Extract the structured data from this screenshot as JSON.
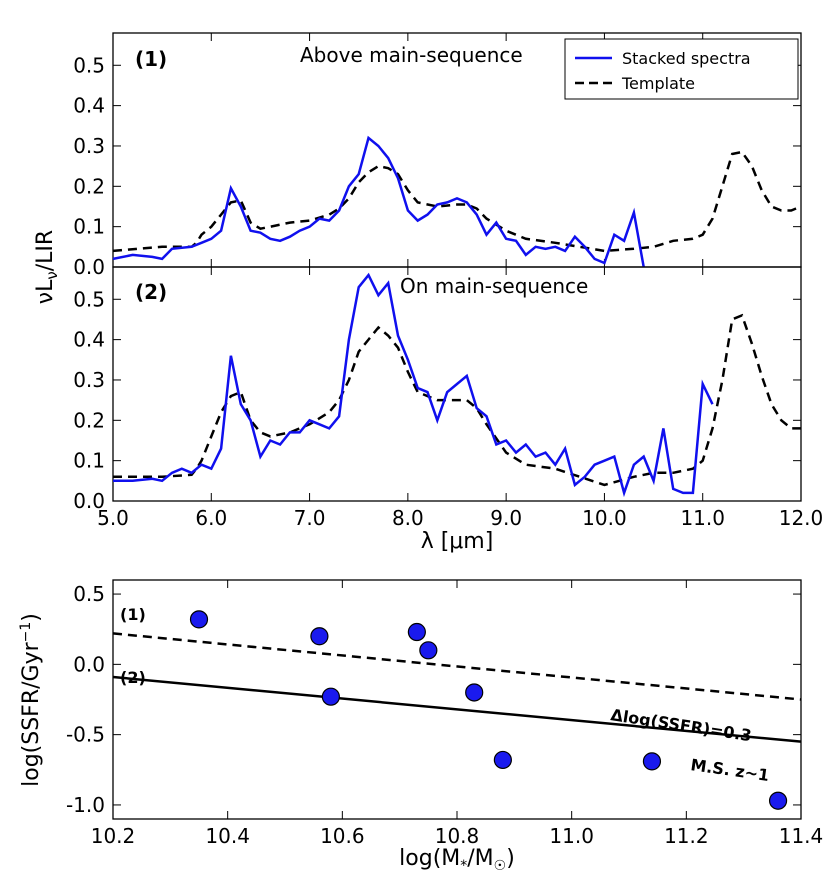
{
  "colors": {
    "spectra": "#1010ee",
    "template": "#000000",
    "point_fill": "#1a1aee",
    "point_edge": "#000000"
  },
  "chart_data": [
    {
      "type": "line",
      "panel": "(1)",
      "title": "Above main-sequence",
      "xlim": [
        5.0,
        12.0
      ],
      "ylim": [
        0.0,
        0.58
      ],
      "yticks": [
        "0.0",
        "0.1",
        "0.2",
        "0.3",
        "0.4",
        "0.5"
      ],
      "ylabel": "νL_ν/LIR",
      "legend": {
        "placement": "top-right",
        "entries": [
          "Stacked spectra",
          "Template"
        ]
      },
      "series": [
        {
          "name": "Stacked spectra",
          "style": "solid",
          "x": [
            5.0,
            5.2,
            5.4,
            5.5,
            5.6,
            5.8,
            5.9,
            6.0,
            6.1,
            6.2,
            6.3,
            6.4,
            6.5,
            6.6,
            6.7,
            6.8,
            6.9,
            7.0,
            7.1,
            7.2,
            7.3,
            7.4,
            7.5,
            7.6,
            7.7,
            7.8,
            7.9,
            8.0,
            8.1,
            8.2,
            8.3,
            8.4,
            8.5,
            8.6,
            8.7,
            8.8,
            8.9,
            9.0,
            9.1,
            9.2,
            9.3,
            9.4,
            9.5,
            9.6,
            9.7,
            9.8,
            9.9,
            10.0,
            10.1,
            10.2,
            10.3,
            10.4
          ],
          "y": [
            0.02,
            0.03,
            0.025,
            0.02,
            0.045,
            0.05,
            0.06,
            0.07,
            0.09,
            0.195,
            0.15,
            0.09,
            0.085,
            0.07,
            0.065,
            0.075,
            0.09,
            0.1,
            0.12,
            0.115,
            0.14,
            0.2,
            0.23,
            0.32,
            0.3,
            0.27,
            0.22,
            0.14,
            0.115,
            0.13,
            0.155,
            0.16,
            0.17,
            0.16,
            0.13,
            0.08,
            0.11,
            0.07,
            0.065,
            0.03,
            0.05,
            0.045,
            0.05,
            0.04,
            0.075,
            0.05,
            0.02,
            0.01,
            0.08,
            0.065,
            0.135,
            0.0
          ]
        },
        {
          "name": "Template",
          "style": "dashed",
          "x": [
            5.0,
            5.5,
            5.8,
            5.85,
            5.9,
            6.0,
            6.1,
            6.2,
            6.3,
            6.4,
            6.5,
            6.6,
            6.8,
            7.0,
            7.2,
            7.3,
            7.4,
            7.5,
            7.6,
            7.7,
            7.8,
            7.9,
            8.0,
            8.1,
            8.3,
            8.5,
            8.6,
            8.7,
            8.8,
            9.0,
            9.2,
            9.5,
            10.0,
            10.3,
            10.5,
            10.7,
            10.9,
            11.0,
            11.1,
            11.2,
            11.3,
            11.4,
            11.5,
            11.6,
            11.7,
            11.8,
            11.9,
            12.0
          ],
          "y": [
            0.04,
            0.05,
            0.05,
            0.06,
            0.08,
            0.1,
            0.13,
            0.16,
            0.165,
            0.11,
            0.095,
            0.1,
            0.11,
            0.115,
            0.13,
            0.145,
            0.17,
            0.21,
            0.235,
            0.25,
            0.245,
            0.23,
            0.19,
            0.16,
            0.15,
            0.155,
            0.155,
            0.145,
            0.12,
            0.09,
            0.07,
            0.06,
            0.04,
            0.045,
            0.05,
            0.065,
            0.07,
            0.08,
            0.12,
            0.2,
            0.28,
            0.285,
            0.25,
            0.19,
            0.15,
            0.14,
            0.14,
            0.15
          ]
        }
      ]
    },
    {
      "type": "line",
      "panel": "(2)",
      "title": "On main-sequence",
      "xlim": [
        5.0,
        12.0
      ],
      "ylim": [
        0.0,
        0.58
      ],
      "yticks": [
        "0.0",
        "0.1",
        "0.2",
        "0.3",
        "0.4",
        "0.5"
      ],
      "xticks": [
        "5.0",
        "6.0",
        "7.0",
        "8.0",
        "9.0",
        "10.0",
        "11.0",
        "12.0"
      ],
      "xlabel": "λ [μm]",
      "series": [
        {
          "name": "Stacked spectra",
          "style": "solid",
          "x": [
            5.0,
            5.2,
            5.4,
            5.5,
            5.6,
            5.7,
            5.8,
            5.9,
            6.0,
            6.1,
            6.2,
            6.3,
            6.4,
            6.5,
            6.6,
            6.7,
            6.8,
            6.9,
            7.0,
            7.1,
            7.2,
            7.3,
            7.4,
            7.5,
            7.6,
            7.7,
            7.8,
            7.9,
            8.0,
            8.1,
            8.2,
            8.3,
            8.4,
            8.5,
            8.6,
            8.7,
            8.8,
            8.9,
            9.0,
            9.1,
            9.2,
            9.3,
            9.4,
            9.5,
            9.6,
            9.7,
            9.8,
            9.9,
            10.0,
            10.1,
            10.2,
            10.3,
            10.4,
            10.5,
            10.6,
            10.7,
            10.8,
            10.9,
            11.0,
            11.1
          ],
          "y": [
            0.05,
            0.05,
            0.055,
            0.05,
            0.07,
            0.08,
            0.07,
            0.09,
            0.08,
            0.13,
            0.36,
            0.24,
            0.2,
            0.11,
            0.15,
            0.14,
            0.17,
            0.17,
            0.2,
            0.19,
            0.18,
            0.21,
            0.4,
            0.53,
            0.56,
            0.51,
            0.54,
            0.41,
            0.35,
            0.28,
            0.27,
            0.2,
            0.27,
            0.29,
            0.31,
            0.23,
            0.21,
            0.14,
            0.15,
            0.12,
            0.14,
            0.11,
            0.12,
            0.09,
            0.13,
            0.04,
            0.06,
            0.09,
            0.1,
            0.11,
            0.02,
            0.09,
            0.11,
            0.05,
            0.18,
            0.03,
            0.02,
            0.02,
            0.29,
            0.24
          ]
        },
        {
          "name": "Template",
          "style": "dashed",
          "x": [
            5.0,
            5.5,
            5.8,
            5.85,
            5.9,
            6.0,
            6.1,
            6.2,
            6.3,
            6.4,
            6.5,
            6.6,
            6.8,
            7.0,
            7.2,
            7.3,
            7.4,
            7.5,
            7.6,
            7.7,
            7.8,
            7.9,
            8.0,
            8.1,
            8.3,
            8.5,
            8.6,
            8.7,
            8.8,
            9.0,
            9.2,
            9.5,
            10.0,
            10.3,
            10.5,
            10.7,
            10.9,
            11.0,
            11.1,
            11.2,
            11.3,
            11.4,
            11.5,
            11.6,
            11.7,
            11.8,
            11.9,
            12.0
          ],
          "y": [
            0.06,
            0.06,
            0.065,
            0.08,
            0.1,
            0.16,
            0.22,
            0.26,
            0.27,
            0.2,
            0.17,
            0.16,
            0.17,
            0.19,
            0.22,
            0.25,
            0.3,
            0.37,
            0.4,
            0.43,
            0.41,
            0.38,
            0.32,
            0.27,
            0.25,
            0.25,
            0.25,
            0.23,
            0.19,
            0.12,
            0.09,
            0.08,
            0.04,
            0.06,
            0.07,
            0.07,
            0.08,
            0.1,
            0.18,
            0.3,
            0.45,
            0.46,
            0.39,
            0.31,
            0.24,
            0.2,
            0.18,
            0.18
          ]
        }
      ]
    },
    {
      "type": "scatter",
      "xlim": [
        10.2,
        11.4
      ],
      "ylim": [
        -1.1,
        0.6
      ],
      "xticks": [
        "10.2",
        "10.4",
        "10.6",
        "10.8",
        "11.0",
        "11.2",
        "11.4"
      ],
      "yticks": [
        "0.5",
        "0.0",
        "-0.5",
        "-1.0"
      ],
      "ytick_values": [
        0.5,
        0.0,
        -0.5,
        -1.0
      ],
      "xlabel": "log(M*/M☉)",
      "ylabel": "log(SSFR/Gyr⁻¹)",
      "points": {
        "x": [
          10.35,
          10.56,
          10.58,
          10.73,
          10.75,
          10.83,
          10.88,
          11.14,
          11.36
        ],
        "y": [
          0.32,
          0.2,
          -0.23,
          0.23,
          0.1,
          -0.2,
          -0.68,
          -0.69,
          -0.97
        ]
      },
      "lines": [
        {
          "name": "(1)",
          "style": "dashed",
          "x": [
            10.2,
            11.4
          ],
          "y": [
            0.22,
            -0.25
          ]
        },
        {
          "name": "(2)",
          "style": "solid",
          "x": [
            10.2,
            11.4
          ],
          "y": [
            -0.09,
            -0.55
          ]
        }
      ],
      "annotations": {
        "line1_label": "(1)",
        "line2_label": "(2)",
        "offset_label": "Δlog(SSFR)=0.3",
        "ms_label": "M.S. z~1"
      }
    }
  ]
}
